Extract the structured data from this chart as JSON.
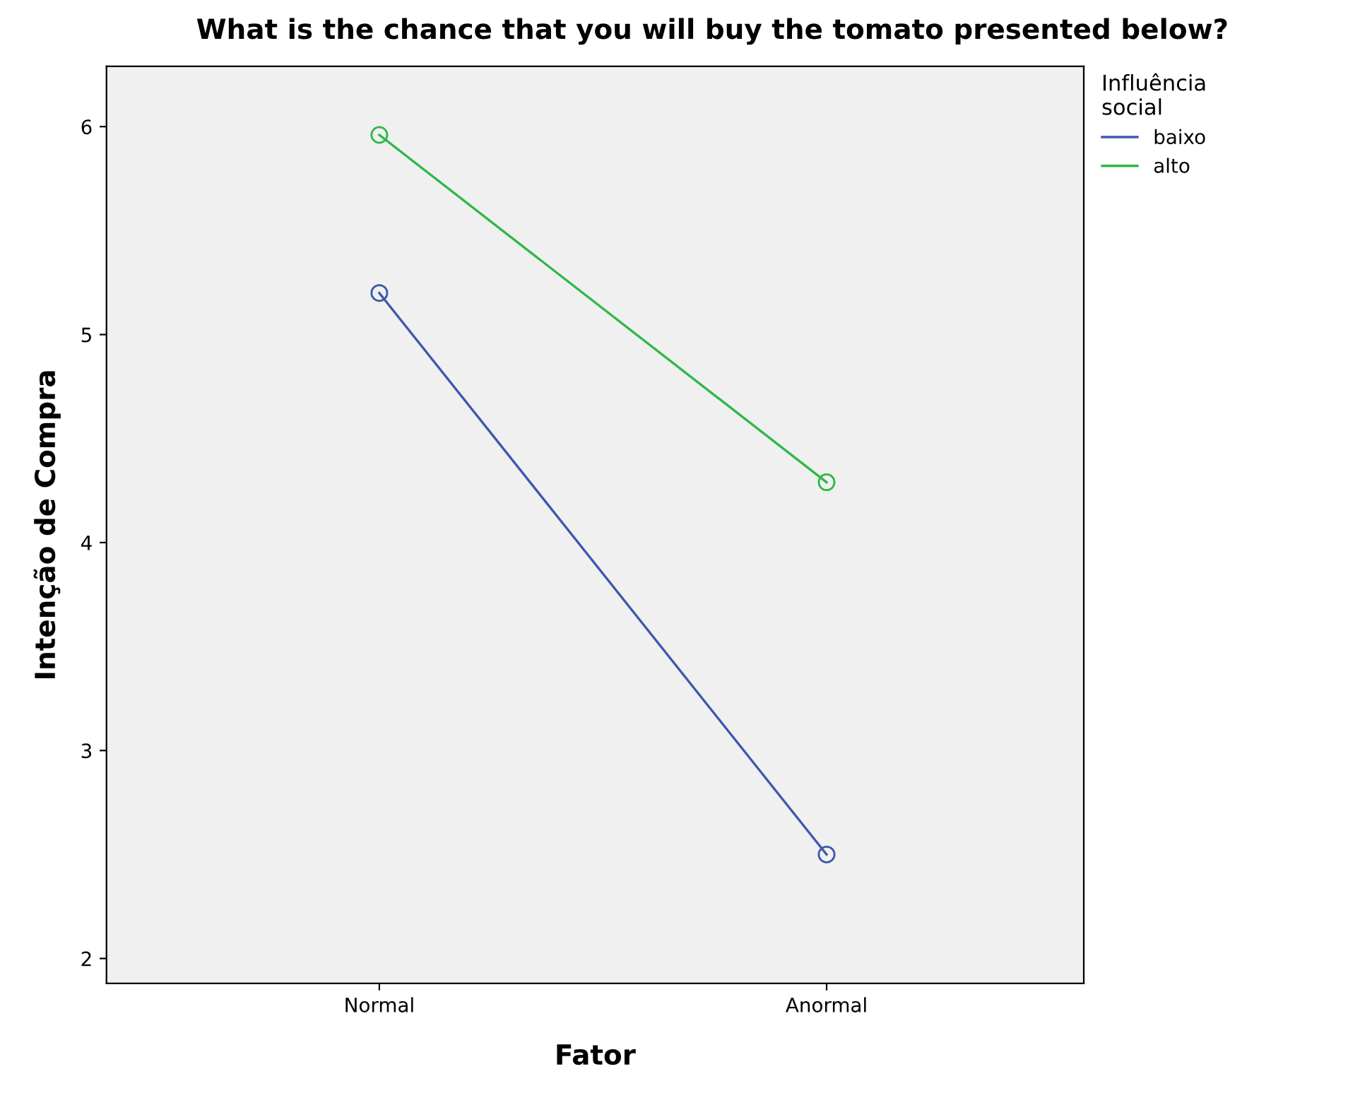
{
  "chart_data": {
    "type": "line",
    "title": "What is the chance that you will buy the tomato presented below?",
    "xlabel": "Fator",
    "ylabel": "Intenção de Compra",
    "legend_title": "Influência\nsocial",
    "categories": [
      "Normal",
      "Anormal"
    ],
    "series": [
      {
        "name": "baixo",
        "color": "#3e58ac",
        "values": [
          5.2,
          2.5
        ]
      },
      {
        "name": "alto",
        "color": "#2eb848",
        "values": [
          5.96,
          4.29
        ]
      }
    ],
    "ylim": [
      1.88,
      6.29
    ],
    "yticks": [
      2,
      3,
      4,
      5,
      6
    ],
    "marker": "circle",
    "legend": "right",
    "grid": false
  }
}
